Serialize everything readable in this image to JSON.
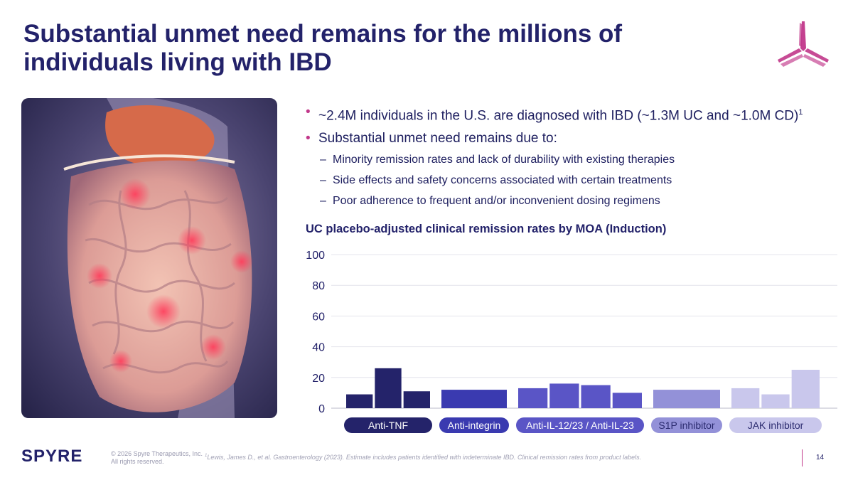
{
  "title": "Substantial unmet need remains for the millions of individuals living with IBD",
  "bullets": {
    "b1_text": "~2.4M individuals in the U.S. are diagnosed with IBD (~1.3M UC and ~1.0M CD)",
    "b1_sup": "1",
    "b2_text": "Substantial unmet need remains due to:",
    "sub": [
      "Minority remission rates and lack of durability with existing therapies",
      "Side effects and safety concerns associated with certain treatments",
      "Poor adherence to frequent and/or inconvenient dosing regimens"
    ],
    "bullet_glyph": "•",
    "dash_glyph": "–"
  },
  "chart_data": {
    "type": "bar",
    "title": "UC placebo-adjusted clinical remission rates by MOA (Induction)",
    "ylim": [
      0,
      100
    ],
    "yticks": [
      0,
      20,
      40,
      60,
      80,
      100
    ],
    "grid": true,
    "groups": [
      {
        "name": "Anti-TNF",
        "values": [
          9,
          26,
          11
        ],
        "color": "#24236a",
        "label_color": "#ffffff"
      },
      {
        "name": "Anti-integrin",
        "values": [
          12
        ],
        "color": "#3a3ab0",
        "label_color": "#ffffff"
      },
      {
        "name": "Anti-IL-12/23 / Anti-IL-23",
        "values": [
          13,
          16,
          15,
          10
        ],
        "color": "#5a55c6",
        "label_color": "#ffffff"
      },
      {
        "name": "S1P inhibitor",
        "values": [
          12
        ],
        "color": "#9391d8",
        "label_color": "#2a2a6e"
      },
      {
        "name": "JAK inhibitor",
        "values": [
          13,
          9,
          25
        ],
        "color": "#c9c7ec",
        "label_color": "#2a2a6e"
      }
    ]
  },
  "footer": {
    "logo_text": "SPYRE",
    "copyright_line1": "© 2026 Spyre Therapeutics, Inc.",
    "copyright_line2": "All rights reserved.",
    "footnote_sup": "1",
    "footnote": "Lewis, James D., et al. Gastroenterology (2023). Estimate includes patients identified with indeterminate IBD. Clinical remission rates from product labels.",
    "page_number": "14"
  },
  "colors": {
    "navy": "#23226a",
    "magenta": "#c1378a"
  }
}
